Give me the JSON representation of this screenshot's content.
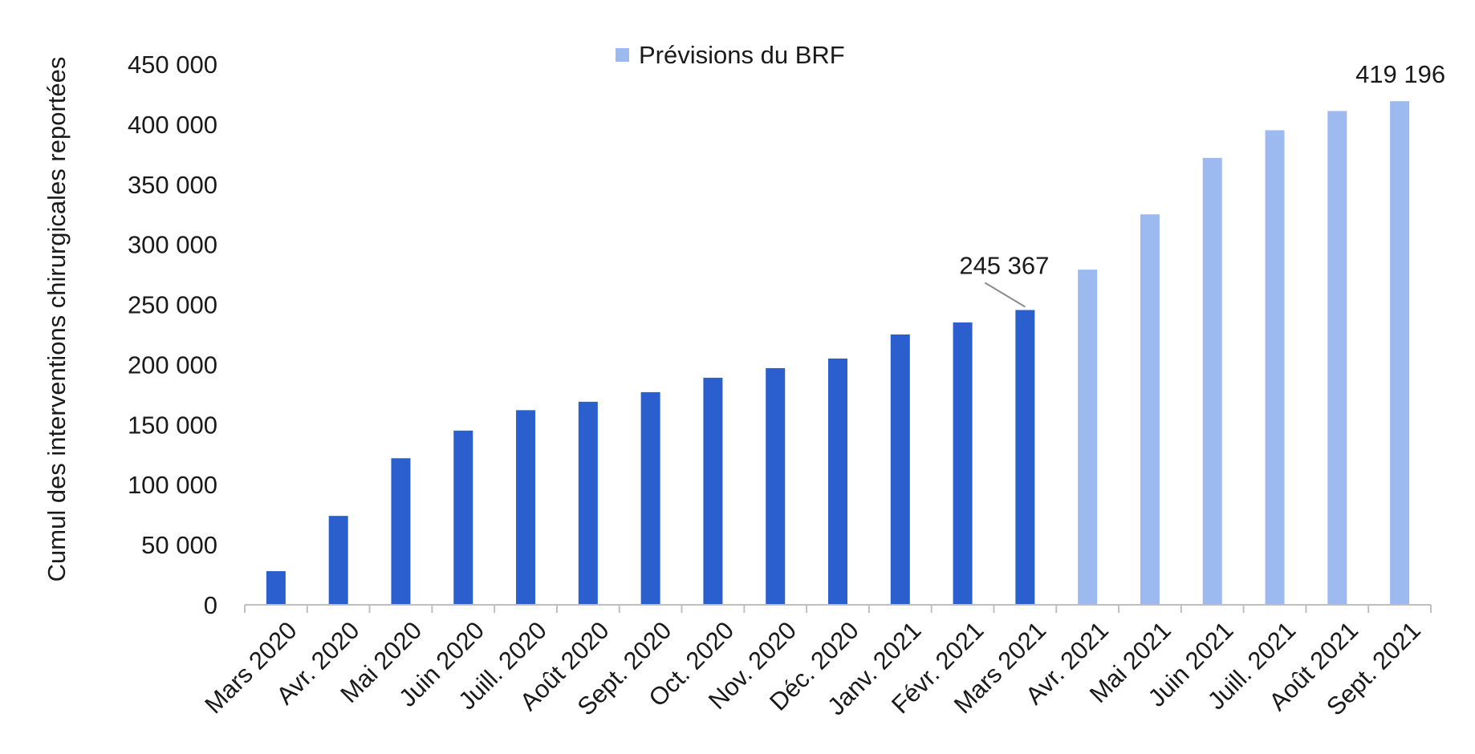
{
  "chart_data": {
    "type": "bar",
    "categories": [
      "Mars 2020",
      "Avr. 2020",
      "Mai 2020",
      "Juin 2020",
      "Juill. 2020",
      "Août 2020",
      "Sept. 2020",
      "Oct. 2020",
      "Nov. 2020",
      "Déc. 2020",
      "Janv. 2021",
      "Févr. 2021",
      "Mars 2021",
      "Avr. 2021",
      "Mai 2021",
      "Juin 2021",
      "Juill. 2021",
      "Août 2021",
      "Sept. 2021"
    ],
    "series": [
      {
        "color": "#2b5fce",
        "values": [
          28000,
          74000,
          122000,
          145000,
          162000,
          169000,
          177000,
          189000,
          197000,
          205000,
          225000,
          235000,
          245367,
          null,
          null,
          null,
          null,
          null,
          null
        ]
      },
      {
        "name": "Prévisions du BRF",
        "color": "#9dbaf0",
        "values": [
          null,
          null,
          null,
          null,
          null,
          null,
          null,
          null,
          null,
          null,
          null,
          null,
          null,
          279000,
          325000,
          372000,
          395000,
          411000,
          419196
        ]
      }
    ],
    "ylabel": "Cumul des interventions chirurgicales reportées",
    "ylim": [
      0,
      450000
    ],
    "yticks": [
      0,
      50000,
      100000,
      150000,
      200000,
      250000,
      300000,
      350000,
      400000,
      450000
    ],
    "ytick_labels": [
      "0",
      "50 000",
      "100 000",
      "150 000",
      "200 000",
      "250 000",
      "300 000",
      "350 000",
      "400 000",
      "450 000"
    ],
    "annotations": [
      {
        "category": "Mars 2021",
        "text": "245 367",
        "leader_line": true
      },
      {
        "category": "Sept. 2021",
        "text": "419 196",
        "leader_line": false
      }
    ],
    "legend": {
      "position": "top-center",
      "entries": [
        "Prévisions du BRF"
      ]
    },
    "grid": false
  }
}
